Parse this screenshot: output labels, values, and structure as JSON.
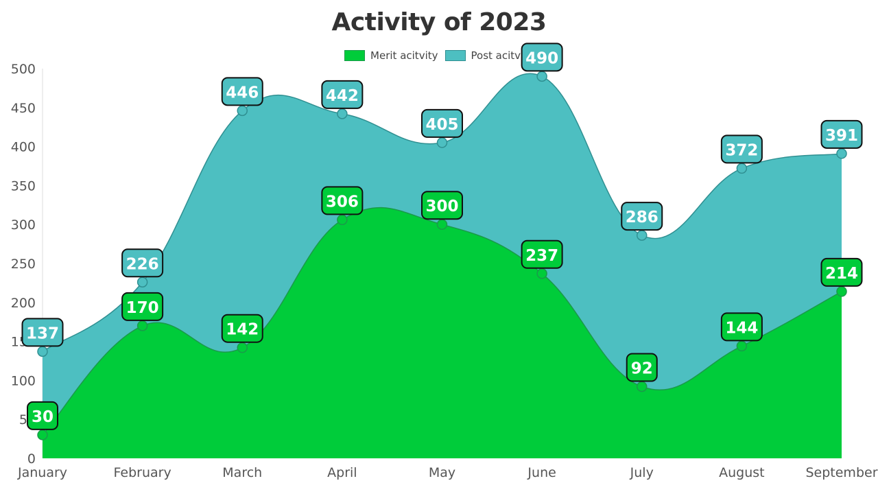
{
  "chart_data": {
    "type": "area",
    "title": "Activity of 2023",
    "categories": [
      "January",
      "February",
      "March",
      "April",
      "May",
      "June",
      "July",
      "August",
      "September"
    ],
    "series": [
      {
        "name": "Merit acitvity",
        "values": [
          30,
          170,
          142,
          306,
          300,
          237,
          92,
          144,
          214
        ],
        "color": "#00cc3a",
        "stroke": "#1a9a4a"
      },
      {
        "name": "Post acitvity",
        "values": [
          137,
          226,
          446,
          442,
          405,
          490,
          286,
          372,
          391
        ],
        "color": "#4dbfc1",
        "stroke": "#2f8f91"
      }
    ],
    "ylim": [
      0,
      500
    ],
    "yticks": [
      0,
      50,
      100,
      150,
      200,
      250,
      300,
      350,
      400,
      450,
      500
    ],
    "xlabel": "",
    "ylabel": "",
    "grid": false,
    "legend": "top-center",
    "data_labels": true
  }
}
